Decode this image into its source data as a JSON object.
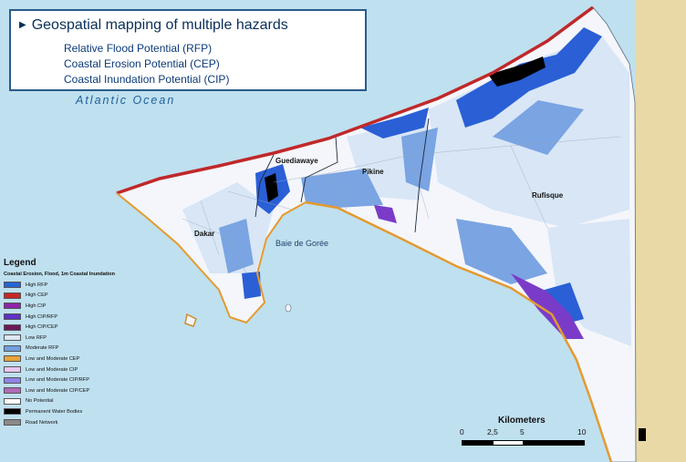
{
  "title": "Geospatial mapping of multiple hazards",
  "subtitles": [
    "Relative Flood Potential (RFP)",
    "Coastal Erosion Potential (CEP)",
    "Coastal Inundation Potential (CIP)"
  ],
  "ocean_label": "Atlantic Ocean",
  "bay_label": "Baie de Gorée",
  "places": [
    "Guediawaye",
    "Pikine",
    "Rufisque",
    "Dakar"
  ],
  "legend": {
    "title": "Legend",
    "subtitle": "Coastal Erosion, Flood, 1m Coastal Inundation",
    "items": [
      {
        "label": "High RFP",
        "color": "#2563d6"
      },
      {
        "label": "High CEP",
        "color": "#c62828"
      },
      {
        "label": "High CIP",
        "color": "#8e24aa"
      },
      {
        "label": "High CIP/RFP",
        "color": "#5b32c8"
      },
      {
        "label": "High CIP/CEP",
        "color": "#6a1b5a"
      },
      {
        "label": "Low RFP",
        "color": "#dce8f7"
      },
      {
        "label": "Moderate RFP",
        "color": "#6e9fe0"
      },
      {
        "label": "Low and Moderate CEP",
        "color": "#e8a33a"
      },
      {
        "label": "Low and Moderate CIP",
        "color": "#e7c7ef"
      },
      {
        "label": "Low and Moderate CIP/RFP",
        "color": "#8e84e8"
      },
      {
        "label": "Low and Moderate CIP/CEP",
        "color": "#b06ab8"
      },
      {
        "label": "No Potential",
        "color": "#ffffff"
      },
      {
        "label": "Permanent Water Bodies",
        "color": "#000000"
      },
      {
        "label": "Road Network",
        "color": "#8a8a8a"
      }
    ]
  },
  "scale": {
    "title": "Kilometers",
    "ticks": [
      "0",
      "2,5",
      "5",
      "10"
    ]
  }
}
